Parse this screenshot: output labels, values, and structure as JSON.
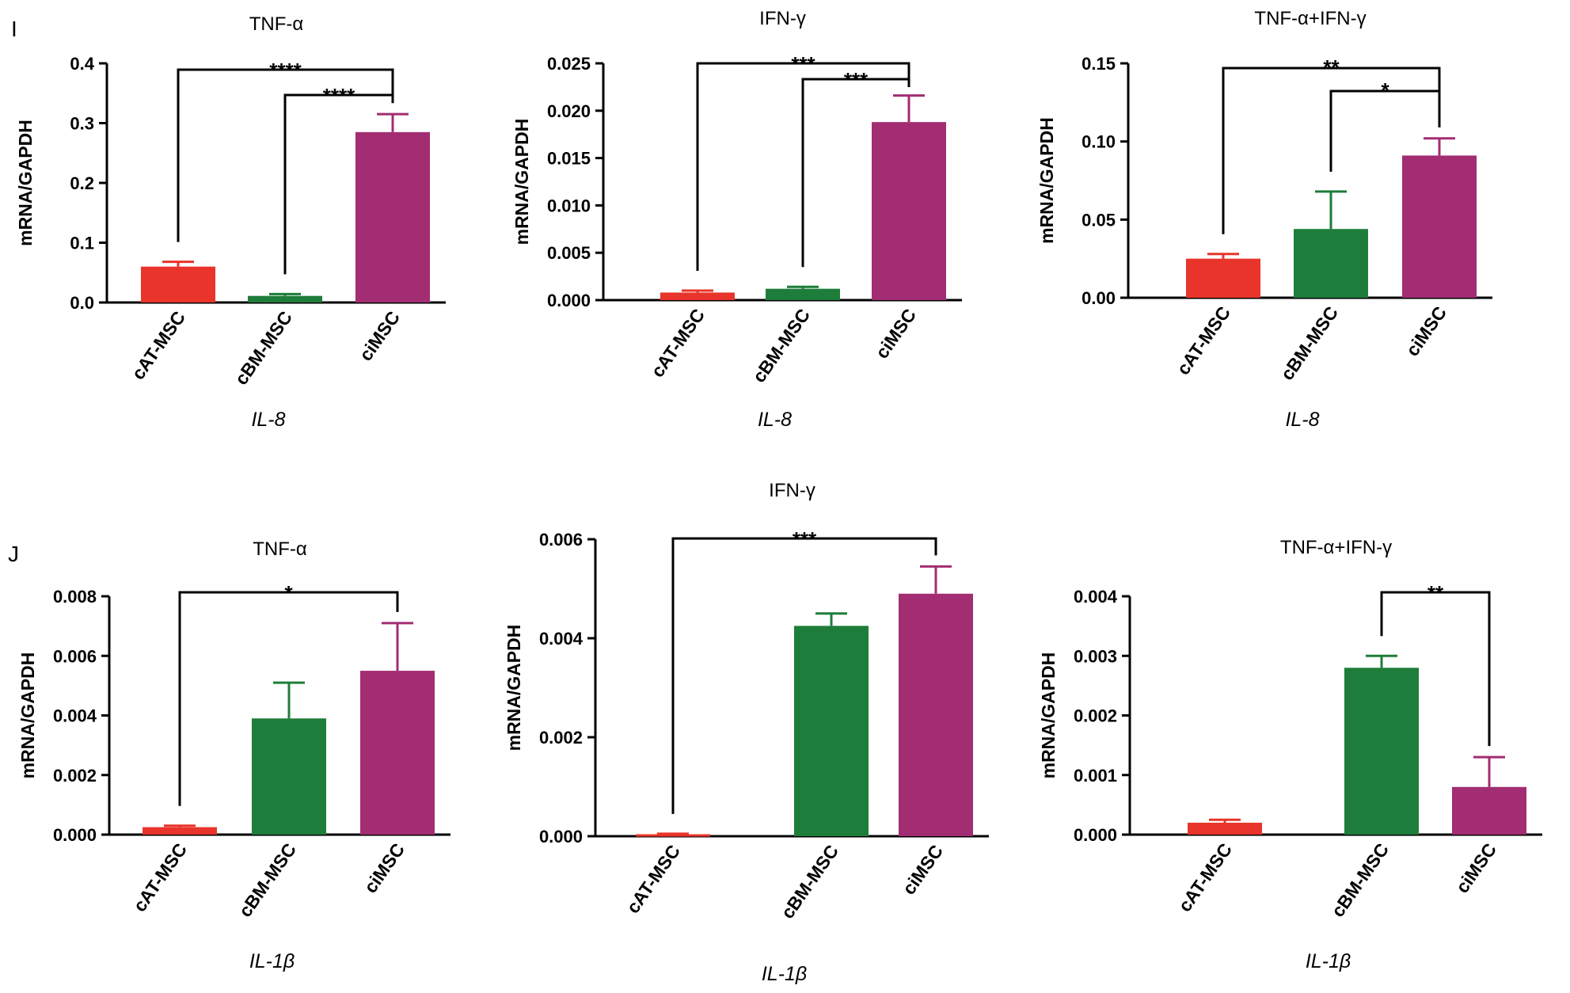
{
  "panels": {
    "row1_label": "I",
    "row2_label": "J"
  },
  "colors": {
    "cAT-MSC": "#e8342a",
    "cBM-MSC": "#1e7d3a",
    "ciMSC": "#a22d72",
    "axis": "#000000"
  },
  "chart_data": [
    {
      "type": "bar",
      "title": "TNF-α",
      "xlabel": "IL-8",
      "ylabel": "mRNA/GAPDH",
      "categories": [
        "cAT-MSC",
        "cBM-MSC",
        "ciMSC"
      ],
      "values": [
        0.06,
        0.011,
        0.285
      ],
      "errors": [
        0.008,
        0.003,
        0.03
      ],
      "ylim": [
        0,
        0.4
      ],
      "yticks": [
        "0.0",
        "0.1",
        "0.2",
        "0.3",
        "0.4"
      ],
      "annotations": [
        {
          "from": "cAT-MSC",
          "to": "ciMSC",
          "label": "****"
        },
        {
          "from": "cBM-MSC",
          "to": "ciMSC",
          "label": "****"
        }
      ]
    },
    {
      "type": "bar",
      "title": "IFN-γ",
      "xlabel": "IL-8",
      "ylabel": "mRNA/GAPDH",
      "categories": [
        "cAT-MSC",
        "cBM-MSC",
        "ciMSC"
      ],
      "values": [
        0.0008,
        0.0012,
        0.0188
      ],
      "errors": [
        0.0002,
        0.0002,
        0.0028
      ],
      "ylim": [
        0,
        0.025
      ],
      "yticks": [
        "0.000",
        "0.005",
        "0.010",
        "0.015",
        "0.020",
        "0.025"
      ],
      "annotations": [
        {
          "from": "cAT-MSC",
          "to": "ciMSC",
          "label": "***"
        },
        {
          "from": "cBM-MSC",
          "to": "ciMSC",
          "label": "***"
        }
      ]
    },
    {
      "type": "bar",
      "title": "TNF-α+IFN-γ",
      "xlabel": "IL-8",
      "ylabel": "mRNA/GAPDH",
      "categories": [
        "cAT-MSC",
        "cBM-MSC",
        "ciMSC"
      ],
      "values": [
        0.025,
        0.044,
        0.091
      ],
      "errors": [
        0.003,
        0.024,
        0.011
      ],
      "ylim": [
        0,
        0.15
      ],
      "yticks": [
        "0.00",
        "0.05",
        "0.10",
        "0.15"
      ],
      "annotations": [
        {
          "from": "cAT-MSC",
          "to": "ciMSC",
          "label": "**"
        },
        {
          "from": "cBM-MSC",
          "to": "ciMSC",
          "label": "*"
        }
      ]
    },
    {
      "type": "bar",
      "title": "TNF-α",
      "xlabel": "IL-1β",
      "ylabel": "mRNA/GAPDH",
      "categories": [
        "cAT-MSC",
        "cBM-MSC",
        "ciMSC"
      ],
      "values": [
        0.00025,
        0.0039,
        0.0055
      ],
      "errors": [
        5e-05,
        0.0012,
        0.0016
      ],
      "ylim": [
        0,
        0.008
      ],
      "yticks": [
        "0.000",
        "0.002",
        "0.004",
        "0.006",
        "0.008"
      ],
      "annotations": [
        {
          "from": "cAT-MSC",
          "to": "ciMSC",
          "label": "*"
        }
      ]
    },
    {
      "type": "bar",
      "title": "IFN-γ",
      "xlabel": "IL-1β",
      "ylabel": "mRNA/GAPDH",
      "categories": [
        "cAT-MSC",
        "cBM-MSC",
        "ciMSC"
      ],
      "values": [
        4e-05,
        0.00425,
        0.0049
      ],
      "errors": [
        1e-05,
        0.00025,
        0.00055
      ],
      "ylim": [
        0,
        0.006
      ],
      "yticks": [
        "0.000",
        "0.002",
        "0.004",
        "0.006"
      ],
      "annotations": [
        {
          "from": "cAT-MSC",
          "to": "ciMSC",
          "label": "***"
        }
      ]
    },
    {
      "type": "bar",
      "title": "TNF-α+IFN-γ",
      "xlabel": "IL-1β",
      "ylabel": "mRNA/GAPDH",
      "categories": [
        "cAT-MSC",
        "cBM-MSC",
        "ciMSC"
      ],
      "values": [
        0.0002,
        0.0028,
        0.0008
      ],
      "errors": [
        5e-05,
        0.0002,
        0.0005
      ],
      "ylim": [
        0,
        0.004
      ],
      "yticks": [
        "0.000",
        "0.001",
        "0.002",
        "0.003",
        "0.004"
      ],
      "annotations": [
        {
          "from": "cBM-MSC",
          "to": "ciMSC",
          "label": "**"
        }
      ]
    }
  ]
}
